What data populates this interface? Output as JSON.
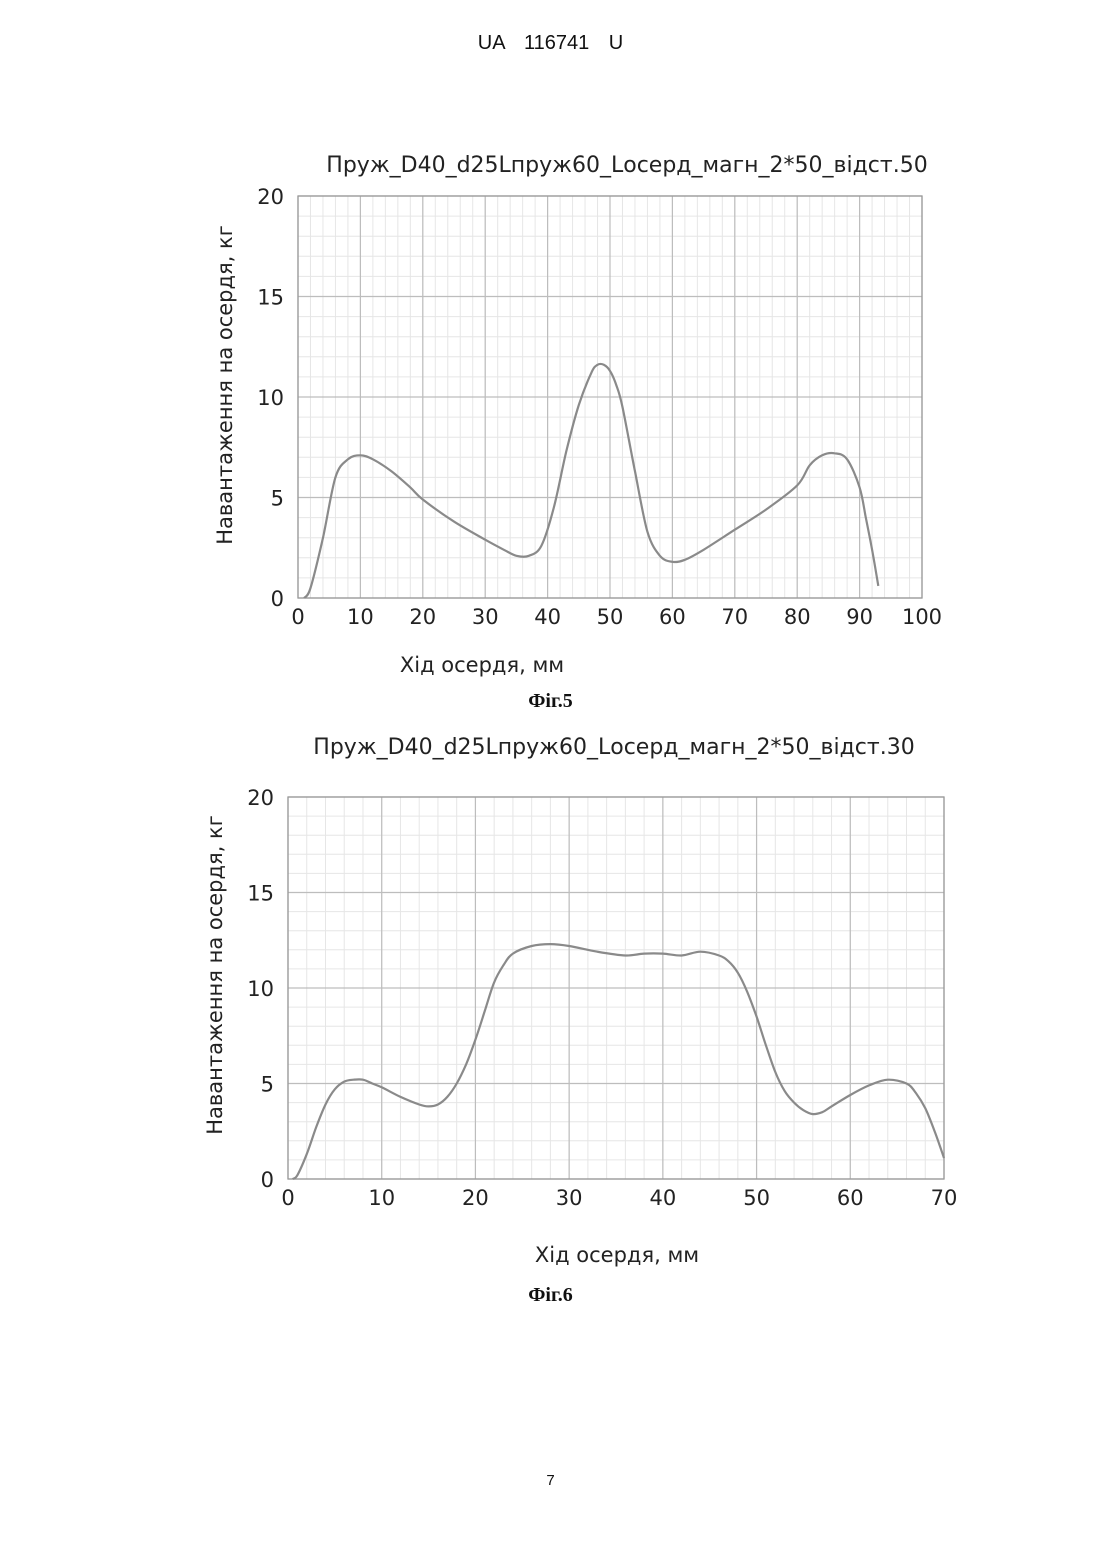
{
  "document": {
    "header": "UA 116741 U",
    "page_number": "7"
  },
  "figures": [
    {
      "caption": "Фіг.5"
    },
    {
      "caption": "Фіг.6"
    }
  ],
  "chart_data": [
    {
      "type": "line",
      "title": "Пруж_D40_d25Lпруж60_Lосерд_магн_2*50_відст.50",
      "xlabel": "Хід осердя, мм",
      "ylabel": "Навантаження на осердя, кг",
      "xlim": [
        0,
        100
      ],
      "ylim": [
        0,
        20
      ],
      "xticks": [
        0,
        10,
        20,
        30,
        40,
        50,
        60,
        70,
        80,
        90,
        100
      ],
      "yticks": [
        0,
        5,
        10,
        15,
        20
      ],
      "grid": true,
      "line_color": "#8a8a8a",
      "series": [
        {
          "x": [
            1,
            2,
            4,
            6,
            8,
            10,
            12,
            15,
            18,
            20,
            25,
            30,
            33,
            35,
            37,
            39,
            41,
            43,
            45,
            47,
            48,
            49,
            50,
            51,
            52,
            54,
            56,
            58,
            60,
            62,
            65,
            70,
            75,
            80,
            82,
            84,
            86,
            88,
            90,
            91,
            92,
            93
          ],
          "y": [
            0,
            0.5,
            3.0,
            6.0,
            6.9,
            7.1,
            6.9,
            6.3,
            5.5,
            4.9,
            3.8,
            2.9,
            2.4,
            2.1,
            2.1,
            2.6,
            4.5,
            7.3,
            9.6,
            11.2,
            11.6,
            11.6,
            11.3,
            10.6,
            9.5,
            6.3,
            3.3,
            2.1,
            1.8,
            1.9,
            2.4,
            3.4,
            4.4,
            5.6,
            6.6,
            7.1,
            7.2,
            6.9,
            5.5,
            4.0,
            2.4,
            0.6
          ]
        }
      ]
    },
    {
      "type": "line",
      "title": "Пруж_D40_d25Lпруж60_Lосерд_магн_2*50_відст.30",
      "xlabel": "Хід осердя, мм",
      "ylabel": "Навантаження на осердя, кг",
      "xlim": [
        0,
        70
      ],
      "ylim": [
        0,
        20
      ],
      "xticks": [
        0,
        10,
        20,
        30,
        40,
        50,
        60,
        70
      ],
      "yticks": [
        0,
        5,
        10,
        15,
        20
      ],
      "grid": true,
      "line_color": "#8a8a8a",
      "series": [
        {
          "x": [
            0.5,
            1,
            2,
            3,
            4,
            5,
            6,
            7,
            8,
            9,
            10,
            12,
            14,
            15,
            16,
            17,
            18,
            19,
            20,
            21,
            22,
            23,
            24,
            26,
            28,
            30,
            33,
            36,
            38,
            40,
            42,
            44,
            46,
            47,
            48,
            49,
            50,
            51,
            52,
            53,
            54,
            55,
            56,
            57,
            58,
            60,
            62,
            64,
            66,
            67,
            68,
            69,
            70
          ],
          "y": [
            0,
            0.2,
            1.3,
            2.7,
            3.9,
            4.7,
            5.1,
            5.2,
            5.2,
            5.0,
            4.8,
            4.3,
            3.9,
            3.8,
            3.9,
            4.3,
            5.0,
            6.0,
            7.3,
            8.8,
            10.3,
            11.2,
            11.8,
            12.2,
            12.3,
            12.2,
            11.9,
            11.7,
            11.8,
            11.8,
            11.7,
            11.9,
            11.7,
            11.4,
            10.8,
            9.8,
            8.5,
            7.0,
            5.6,
            4.6,
            4.0,
            3.6,
            3.4,
            3.5,
            3.8,
            4.4,
            4.9,
            5.2,
            5.0,
            4.5,
            3.7,
            2.5,
            1.1
          ]
        }
      ]
    }
  ]
}
